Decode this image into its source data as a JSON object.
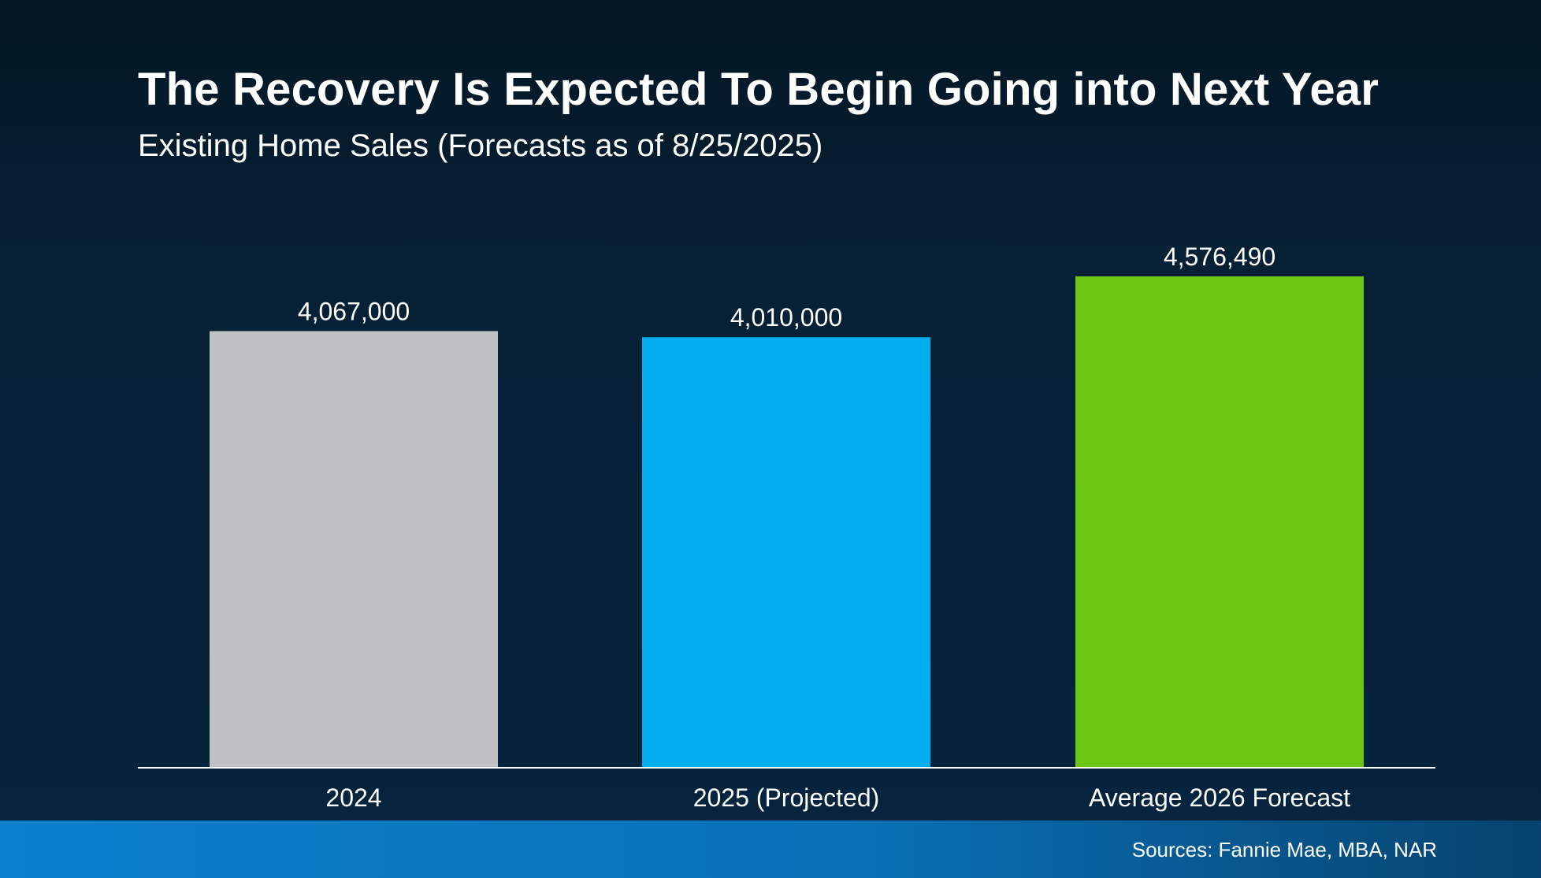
{
  "title": "The Recovery Is Expected To Begin Going into Next Year",
  "subtitle": "Existing Home Sales (Forecasts as of 8/25/2025)",
  "sources": "Sources: Fannie Mae, MBA, NAR",
  "chart_data": {
    "type": "bar",
    "title": "The Recovery Is Expected To Begin Going into Next Year",
    "subtitle": "Existing Home Sales (Forecasts as of 8/25/2025)",
    "xlabel": "",
    "ylabel": "",
    "categories": [
      "2024",
      "2025 (Projected)",
      "Average 2026 Forecast"
    ],
    "values": [
      4067000,
      4010000,
      4576490
    ],
    "value_labels": [
      "4,067,000",
      "4,010,000",
      "4,576,490"
    ],
    "colors": [
      "#bfc2c3",
      "#00aeef",
      "#6cc712"
    ],
    "ylim": [
      0,
      5150000
    ],
    "grid": false,
    "legend": "none"
  }
}
